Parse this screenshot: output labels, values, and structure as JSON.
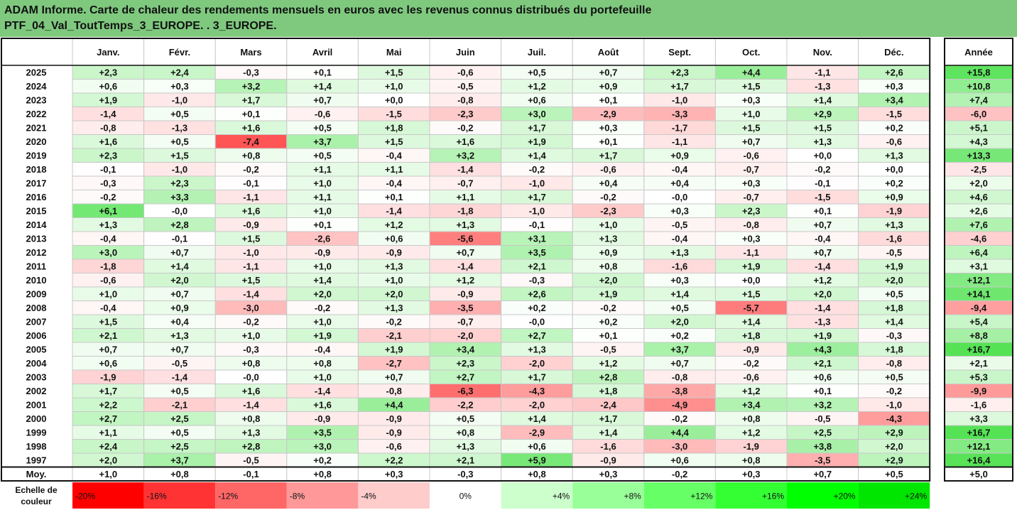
{
  "header": {
    "title_line1": "ADAM Informe. Carte de chaleur des rendements mensuels en euros avec les revenus connus distribués du portefeuille",
    "title_line2": "PTF_04_Val_ToutTemps_3_EUROPE. . 3_EUROPE."
  },
  "chart_data": {
    "type": "heatmap",
    "title": "ADAM Informe. Carte de chaleur des rendements mensuels en euros avec les revenus connus distribués du portefeuille PTF_04_Val_ToutTemps_3_EUROPE. . 3_EUROPE.",
    "columns": [
      "Janv.",
      "Févr.",
      "Mars",
      "Avril",
      "Mai",
      "Juin",
      "Juil.",
      "Août",
      "Sept.",
      "Oct.",
      "Nov.",
      "Déc."
    ],
    "year_column_label": "Année",
    "rows": [
      {
        "year": "2025",
        "values": [
          "+2,3",
          "+2,4",
          "-0,3",
          "+0,1",
          "+1,5",
          "-0,6",
          "+0,5",
          "+0,7",
          "+2,3",
          "+4,4",
          "-1,1",
          "+2,6"
        ],
        "annual": "+15,8"
      },
      {
        "year": "2024",
        "values": [
          "+0,6",
          "+0,3",
          "+3,2",
          "+1,4",
          "+1,0",
          "-0,5",
          "+1,2",
          "+0,9",
          "+1,7",
          "+1,5",
          "-1,3",
          "+0,3"
        ],
        "annual": "+10,8"
      },
      {
        "year": "2023",
        "values": [
          "+1,9",
          "-1,0",
          "+1,7",
          "+0,7",
          "+0,0",
          "-0,8",
          "+0,6",
          "+0,1",
          "-1,0",
          "+0,3",
          "+1,4",
          "+3,4"
        ],
        "annual": "+7,4"
      },
      {
        "year": "2022",
        "values": [
          "-1,4",
          "+0,5",
          "+0,1",
          "-0,6",
          "-1,5",
          "-2,3",
          "+3,0",
          "-2,9",
          "-3,3",
          "+1,0",
          "+2,9",
          "-1,5"
        ],
        "annual": "-6,0"
      },
      {
        "year": "2021",
        "values": [
          "-0,8",
          "-1,3",
          "+1,6",
          "+0,5",
          "+1,8",
          "-0,2",
          "+1,7",
          "+0,3",
          "-1,7",
          "+1,5",
          "+1,5",
          "+0,2"
        ],
        "annual": "+5,1"
      },
      {
        "year": "2020",
        "values": [
          "+1,6",
          "+0,5",
          "-7,4",
          "+3,7",
          "+1,5",
          "+1,6",
          "+1,9",
          "+0,1",
          "-1,1",
          "+0,7",
          "+1,3",
          "-0,6"
        ],
        "annual": "+4,3"
      },
      {
        "year": "2019",
        "values": [
          "+2,3",
          "+1,5",
          "+0,8",
          "+0,5",
          "-0,4",
          "+3,2",
          "+1,4",
          "+1,7",
          "+0,9",
          "-0,6",
          "+0,0",
          "+1,3"
        ],
        "annual": "+13,3"
      },
      {
        "year": "2018",
        "values": [
          "-0,1",
          "-1,0",
          "-0,2",
          "+1,1",
          "+1,1",
          "-1,4",
          "-0,2",
          "-0,6",
          "-0,4",
          "-0,7",
          "-0,2",
          "+0,0"
        ],
        "annual": "-2,5"
      },
      {
        "year": "2017",
        "values": [
          "-0,3",
          "+2,3",
          "-0,1",
          "+1,0",
          "-0,4",
          "-0,7",
          "-1,0",
          "+0,4",
          "+0,4",
          "+0,3",
          "-0,1",
          "+0,2"
        ],
        "annual": "+2,0"
      },
      {
        "year": "2016",
        "values": [
          "-0,2",
          "+3,3",
          "-1,1",
          "+1,1",
          "+0,1",
          "+1,1",
          "+1,7",
          "-0,2",
          "-0,0",
          "-0,7",
          "-1,5",
          "+0,9"
        ],
        "annual": "+4,6"
      },
      {
        "year": "2015",
        "values": [
          "+6,1",
          "-0,0",
          "+1,6",
          "+1,0",
          "-1,4",
          "-1,8",
          "-1,0",
          "-2,3",
          "+0,3",
          "+2,3",
          "+0,1",
          "-1,9"
        ],
        "annual": "+2,6"
      },
      {
        "year": "2014",
        "values": [
          "+1,3",
          "+2,8",
          "-0,9",
          "+0,1",
          "+1,2",
          "+1,3",
          "-0,1",
          "+1,0",
          "-0,5",
          "-0,8",
          "+0,7",
          "+1,3"
        ],
        "annual": "+7,6"
      },
      {
        "year": "2013",
        "values": [
          "-0,4",
          "-0,1",
          "+1,5",
          "-2,6",
          "+0,6",
          "-5,6",
          "+3,1",
          "+1,3",
          "-0,4",
          "+0,3",
          "-0,4",
          "-1,6"
        ],
        "annual": "-4,6"
      },
      {
        "year": "2012",
        "values": [
          "+3,0",
          "+0,7",
          "-1,0",
          "-0,9",
          "-0,9",
          "+0,7",
          "+3,5",
          "+0,9",
          "+1,3",
          "-1,1",
          "+0,7",
          "-0,5"
        ],
        "annual": "+6,4"
      },
      {
        "year": "2011",
        "values": [
          "-1,8",
          "+1,4",
          "-1,1",
          "+1,0",
          "+1,3",
          "-1,4",
          "+2,1",
          "+0,8",
          "-1,6",
          "+1,9",
          "-1,4",
          "+1,9"
        ],
        "annual": "+3,1"
      },
      {
        "year": "2010",
        "values": [
          "-0,6",
          "+2,0",
          "+1,5",
          "+1,4",
          "+1,0",
          "+1,2",
          "-0,3",
          "+2,0",
          "+0,3",
          "+0,0",
          "+1,2",
          "+2,0"
        ],
        "annual": "+12,1"
      },
      {
        "year": "2009",
        "values": [
          "+1,0",
          "+0,7",
          "-1,4",
          "+2,0",
          "+2,0",
          "-0,9",
          "+2,6",
          "+1,9",
          "+1,4",
          "+1,5",
          "+2,0",
          "+0,5"
        ],
        "annual": "+14,1"
      },
      {
        "year": "2008",
        "values": [
          "-0,4",
          "+0,9",
          "-3,0",
          "-0,2",
          "+1,3",
          "-3,5",
          "+0,2",
          "-0,2",
          "+0,5",
          "-5,7",
          "-1,4",
          "+1,8"
        ],
        "annual": "-9,4"
      },
      {
        "year": "2007",
        "values": [
          "+1,5",
          "+0,4",
          "-0,2",
          "+1,0",
          "-0,2",
          "-0,7",
          "-0,0",
          "+0,2",
          "+2,0",
          "+1,4",
          "-1,3",
          "+1,4"
        ],
        "annual": "+5,4"
      },
      {
        "year": "2006",
        "values": [
          "+2,1",
          "+1,3",
          "+1,0",
          "+1,9",
          "-2,1",
          "-2,0",
          "+2,7",
          "+0,1",
          "+0,2",
          "+1,8",
          "+1,9",
          "-0,3"
        ],
        "annual": "+8,8"
      },
      {
        "year": "2005",
        "values": [
          "+0,7",
          "+0,7",
          "-0,3",
          "-0,4",
          "+1,9",
          "+3,4",
          "+1,3",
          "-0,5",
          "+3,7",
          "-0,9",
          "+4,3",
          "+1,8"
        ],
        "annual": "+16,7"
      },
      {
        "year": "2004",
        "values": [
          "+0,6",
          "-0,5",
          "+0,8",
          "+0,8",
          "-2,7",
          "+2,3",
          "-2,0",
          "+1,2",
          "+0,7",
          "-0,2",
          "+2,1",
          "-0,8"
        ],
        "annual": "+2,1"
      },
      {
        "year": "2003",
        "values": [
          "-1,9",
          "-1,4",
          "-0,0",
          "+1,0",
          "+0,7",
          "+2,7",
          "+1,7",
          "+2,8",
          "-0,8",
          "-0,6",
          "+0,6",
          "+0,5"
        ],
        "annual": "+5,3"
      },
      {
        "year": "2002",
        "values": [
          "+1,7",
          "+0,5",
          "+1,6",
          "-1,4",
          "-0,8",
          "-6,3",
          "-4,3",
          "+1,8",
          "-3,8",
          "+1,2",
          "+0,1",
          "-0,2"
        ],
        "annual": "-9,9"
      },
      {
        "year": "2001",
        "values": [
          "+2,2",
          "-2,1",
          "-1,4",
          "+1,6",
          "+4,4",
          "-2,2",
          "-2,0",
          "-2,4",
          "-4,9",
          "+3,4",
          "+3,2",
          "-1,0"
        ],
        "annual": "-1,6"
      },
      {
        "year": "2000",
        "values": [
          "+2,7",
          "+2,5",
          "+0,8",
          "-0,9",
          "-0,9",
          "+0,5",
          "+1,4",
          "+1,7",
          "-0,2",
          "+0,8",
          "-0,5",
          "-4,3"
        ],
        "annual": "+3,3"
      },
      {
        "year": "1999",
        "values": [
          "+1,1",
          "+0,5",
          "+1,3",
          "+3,5",
          "-0,9",
          "+0,8",
          "-2,9",
          "+1,4",
          "+4,4",
          "+1,2",
          "+2,5",
          "+2,9"
        ],
        "annual": "+16,7"
      },
      {
        "year": "1998",
        "values": [
          "+2,4",
          "+2,5",
          "+2,8",
          "+3,0",
          "-0,6",
          "+1,3",
          "+0,6",
          "-1,6",
          "-3,0",
          "-1,9",
          "+3,8",
          "+2,0"
        ],
        "annual": "+12,1"
      },
      {
        "year": "1997",
        "values": [
          "+2,0",
          "+3,7",
          "-0,5",
          "+0,2",
          "+2,2",
          "+2,1",
          "+5,9",
          "-0,9",
          "+0,6",
          "+0,8",
          "-3,5",
          "+2,9"
        ],
        "annual": "+16,4"
      }
    ],
    "average_row": {
      "label": "Moy.",
      "values": [
        "+1,0",
        "+0,8",
        "-0,1",
        "+0,8",
        "+0,3",
        "-0,3",
        "+0,8",
        "+0,3",
        "-0,2",
        "+0,3",
        "+0,7",
        "+0,5"
      ],
      "annual": "+5,0"
    },
    "color_scale": {
      "label": "Echelle de couleur",
      "stops": [
        {
          "label": "-20%",
          "color": "#ff0000"
        },
        {
          "label": "-16%",
          "color": "#ff3333"
        },
        {
          "label": "-12%",
          "color": "#ff6666"
        },
        {
          "label": "-8%",
          "color": "#ff9999"
        },
        {
          "label": "-4%",
          "color": "#ffcccc"
        },
        {
          "label": "0%",
          "color": "#ffffff"
        },
        {
          "label": "+4%",
          "color": "#ccffcc"
        },
        {
          "label": "+8%",
          "color": "#99ff99"
        },
        {
          "label": "+12%",
          "color": "#66ff66"
        },
        {
          "label": "+16%",
          "color": "#33ff33"
        },
        {
          "label": "+20%",
          "color": "#00ff00"
        },
        {
          "label": "+24%",
          "color": "#00e600"
        }
      ]
    },
    "colors": {
      "title_bg": "#7fc97f",
      "positive": "#00ff00",
      "negative": "#ff0000",
      "neutral": "#ffffff"
    }
  }
}
